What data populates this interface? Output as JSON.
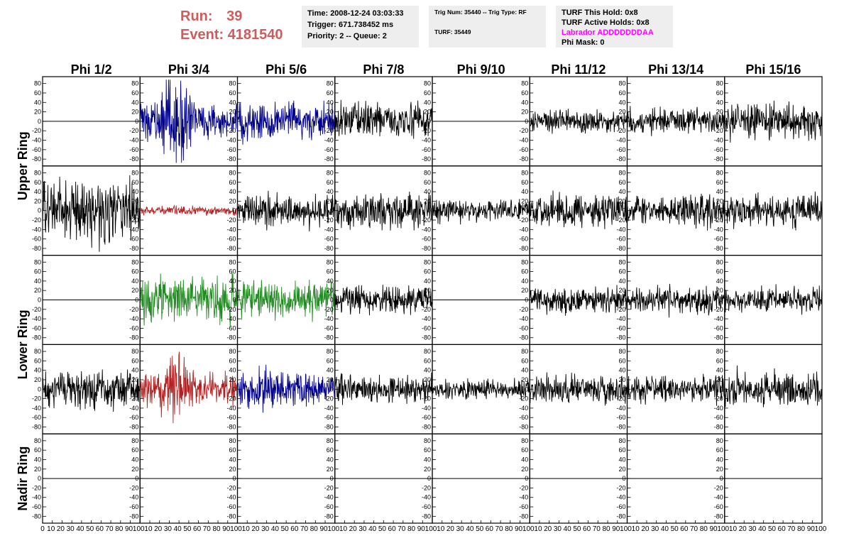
{
  "header": {
    "run_label": "Run:",
    "run_value": "39",
    "event_label": "Event:",
    "event_value": "4181540"
  },
  "info_time": {
    "time": "Time: 2008-12-24 03:03:33",
    "trigger": "Trigger: 671.738452 ms",
    "priority": "Priority: 2 -- Queue: 2"
  },
  "info_trig": {
    "trig": "Trig Num: 35440 -- Trig Type: RF",
    "turf": "TURF: 35449"
  },
  "info_turf": {
    "this_hold": "TURF This Hold: 0x8",
    "active_holds": "TURF Active Holds: 0x8",
    "labrador": "Labrador ADDDDDDDAA",
    "phi_mask": "Phi Mask: 0"
  },
  "chart_data": {
    "type": "line",
    "columns": [
      "Phi 1/2",
      "Phi 3/4",
      "Phi 5/6",
      "Phi 7/8",
      "Phi 9/10",
      "Phi 11/12",
      "Phi 13/14",
      "Phi 15/16"
    ],
    "row_labels": [
      {
        "text": "Upper Ring",
        "rows": [
          0,
          1
        ]
      },
      {
        "text": "Lower Ring",
        "rows": [
          2,
          3
        ]
      },
      {
        "text": "Nadir Ring",
        "rows": [
          4,
          4
        ]
      }
    ],
    "ylim": [
      -90,
      90
    ],
    "yticks": [
      -80,
      -60,
      -40,
      -20,
      0,
      20,
      40,
      60,
      80
    ],
    "xlim": [
      0,
      100
    ],
    "xticks": [
      10,
      20,
      30,
      40,
      50,
      60,
      70,
      80,
      90,
      100
    ],
    "first_xtick": "0",
    "trace_samples": 256,
    "colors": {
      "black": "#000000",
      "blue": "#00008b",
      "red": "#b22222",
      "green": "#228b22"
    },
    "panels": [
      [
        {
          "c": "black",
          "a": 0
        },
        {
          "c": "blue",
          "a": 28,
          "b": 1
        },
        {
          "c": "blue",
          "a": 18
        },
        {
          "c": "black",
          "a": 16
        },
        {
          "c": "black",
          "a": 0
        },
        {
          "c": "black",
          "a": 11
        },
        {
          "c": "black",
          "a": 12
        },
        {
          "c": "black",
          "a": 16
        }
      ],
      [
        {
          "c": "black",
          "a": 28
        },
        {
          "c": "red",
          "a": 4
        },
        {
          "c": "black",
          "a": 15
        },
        {
          "c": "black",
          "a": 16
        },
        {
          "c": "black",
          "a": 10
        },
        {
          "c": "black",
          "a": 15
        },
        {
          "c": "black",
          "a": 14
        },
        {
          "c": "black",
          "a": 14
        }
      ],
      [
        {
          "c": "black",
          "a": 0
        },
        {
          "c": "green",
          "a": 20
        },
        {
          "c": "green",
          "a": 16
        },
        {
          "c": "black",
          "a": 13
        },
        {
          "c": "black",
          "a": 0
        },
        {
          "c": "black",
          "a": 12
        },
        {
          "c": "black",
          "a": 12
        },
        {
          "c": "black",
          "a": 11
        }
      ],
      [
        {
          "c": "black",
          "a": 17
        },
        {
          "c": "red",
          "a": 25,
          "b": 1
        },
        {
          "c": "blue",
          "a": 17
        },
        {
          "c": "black",
          "a": 13
        },
        {
          "c": "black",
          "a": 9
        },
        {
          "c": "black",
          "a": 13
        },
        {
          "c": "black",
          "a": 12
        },
        {
          "c": "black",
          "a": 16
        }
      ],
      [
        {
          "c": "black",
          "a": 0
        },
        {
          "c": "black",
          "a": 0
        },
        {
          "c": "black",
          "a": 0
        },
        {
          "c": "black",
          "a": 0
        },
        {
          "c": "black",
          "a": 0
        },
        {
          "c": "black",
          "a": 0
        },
        {
          "c": "black",
          "a": 0
        },
        {
          "c": "black",
          "a": 0
        }
      ]
    ]
  }
}
